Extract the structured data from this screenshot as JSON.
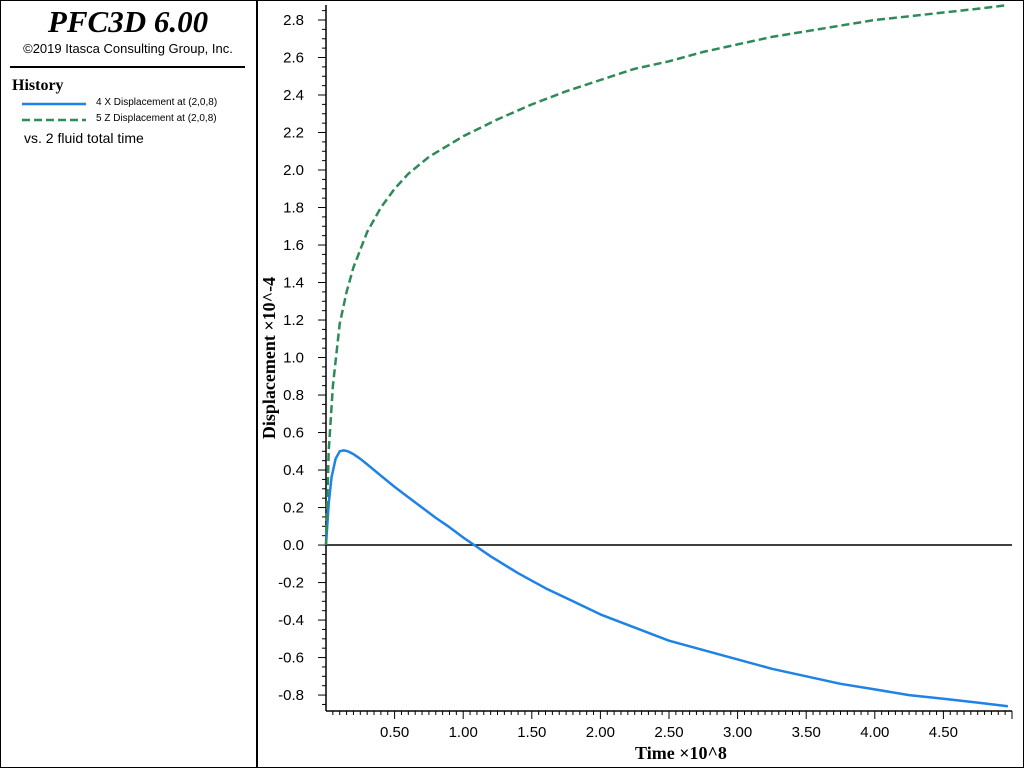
{
  "app": {
    "title": "PFC3D 6.00",
    "copyright": "©2019 Itasca Consulting Group, Inc."
  },
  "legend": {
    "heading": "History",
    "vs_label": "vs. 2 fluid total time"
  },
  "colors": {
    "series_x": "#1E82E6",
    "series_z": "#2E8B57",
    "axis": "#000000"
  },
  "chart_data": {
    "type": "line",
    "title": "",
    "xlabel": "Time ×10^8",
    "ylabel": "Displacement ×10^-4",
    "xlim": [
      0.0,
      5.0
    ],
    "ylim": [
      -0.85,
      2.9
    ],
    "x_ticks": [
      0.5,
      1.0,
      1.5,
      2.0,
      2.5,
      3.0,
      3.5,
      4.0,
      4.5
    ],
    "x_tick_labels": [
      "0.50",
      "1.00",
      "1.50",
      "2.00",
      "2.50",
      "3.00",
      "3.50",
      "4.00",
      "4.50"
    ],
    "y_ticks": [
      2.8,
      2.6,
      2.4,
      2.2,
      2.0,
      1.8,
      1.6,
      1.4,
      1.2,
      1.0,
      0.8,
      0.6,
      0.4,
      0.2,
      0.0,
      -0.2,
      -0.4,
      -0.6,
      -0.8
    ],
    "y_tick_labels": [
      "2.8",
      "2.6",
      "2.4",
      "2.2",
      "2.0",
      "1.8",
      "1.6",
      "1.4",
      "1.2",
      "1.0",
      "0.8",
      "0.6",
      "0.4",
      "0.2",
      "0.0",
      "-0.2",
      "-0.4",
      "-0.6",
      "-0.8"
    ],
    "zero_line": true,
    "grid": false,
    "legend_position": "left-panel",
    "series": [
      {
        "name": "4 X Displacement at (2,0,8)",
        "line_style": "solid",
        "x": [
          0.0,
          0.02,
          0.04,
          0.07,
          0.1,
          0.13,
          0.16,
          0.2,
          0.25,
          0.3,
          0.4,
          0.5,
          0.6,
          0.7,
          0.8,
          0.9,
          1.0,
          1.1,
          1.2,
          1.4,
          1.6,
          1.8,
          2.0,
          2.25,
          2.5,
          2.75,
          3.0,
          3.25,
          3.5,
          3.75,
          4.0,
          4.25,
          4.5,
          4.75,
          4.97
        ],
        "y": [
          0.0,
          0.22,
          0.36,
          0.46,
          0.5,
          0.505,
          0.5,
          0.485,
          0.46,
          0.43,
          0.37,
          0.31,
          0.255,
          0.2,
          0.145,
          0.095,
          0.04,
          -0.01,
          -0.06,
          -0.15,
          -0.23,
          -0.3,
          -0.37,
          -0.44,
          -0.51,
          -0.56,
          -0.61,
          -0.66,
          -0.7,
          -0.74,
          -0.77,
          -0.8,
          -0.82,
          -0.84,
          -0.86
        ]
      },
      {
        "name": "5 Z Displacement at (2,0,8)",
        "line_style": "dashed",
        "x": [
          0.0,
          0.02,
          0.05,
          0.1,
          0.15,
          0.2,
          0.3,
          0.4,
          0.5,
          0.6,
          0.75,
          1.0,
          1.25,
          1.5,
          1.75,
          2.0,
          2.25,
          2.5,
          2.75,
          3.0,
          3.25,
          3.5,
          3.75,
          4.0,
          4.25,
          4.5,
          4.75,
          4.97
        ],
        "y": [
          0.0,
          0.5,
          0.85,
          1.18,
          1.35,
          1.48,
          1.67,
          1.8,
          1.9,
          1.98,
          2.07,
          2.18,
          2.27,
          2.35,
          2.42,
          2.48,
          2.54,
          2.58,
          2.63,
          2.67,
          2.71,
          2.74,
          2.77,
          2.8,
          2.82,
          2.84,
          2.86,
          2.88
        ]
      }
    ]
  }
}
